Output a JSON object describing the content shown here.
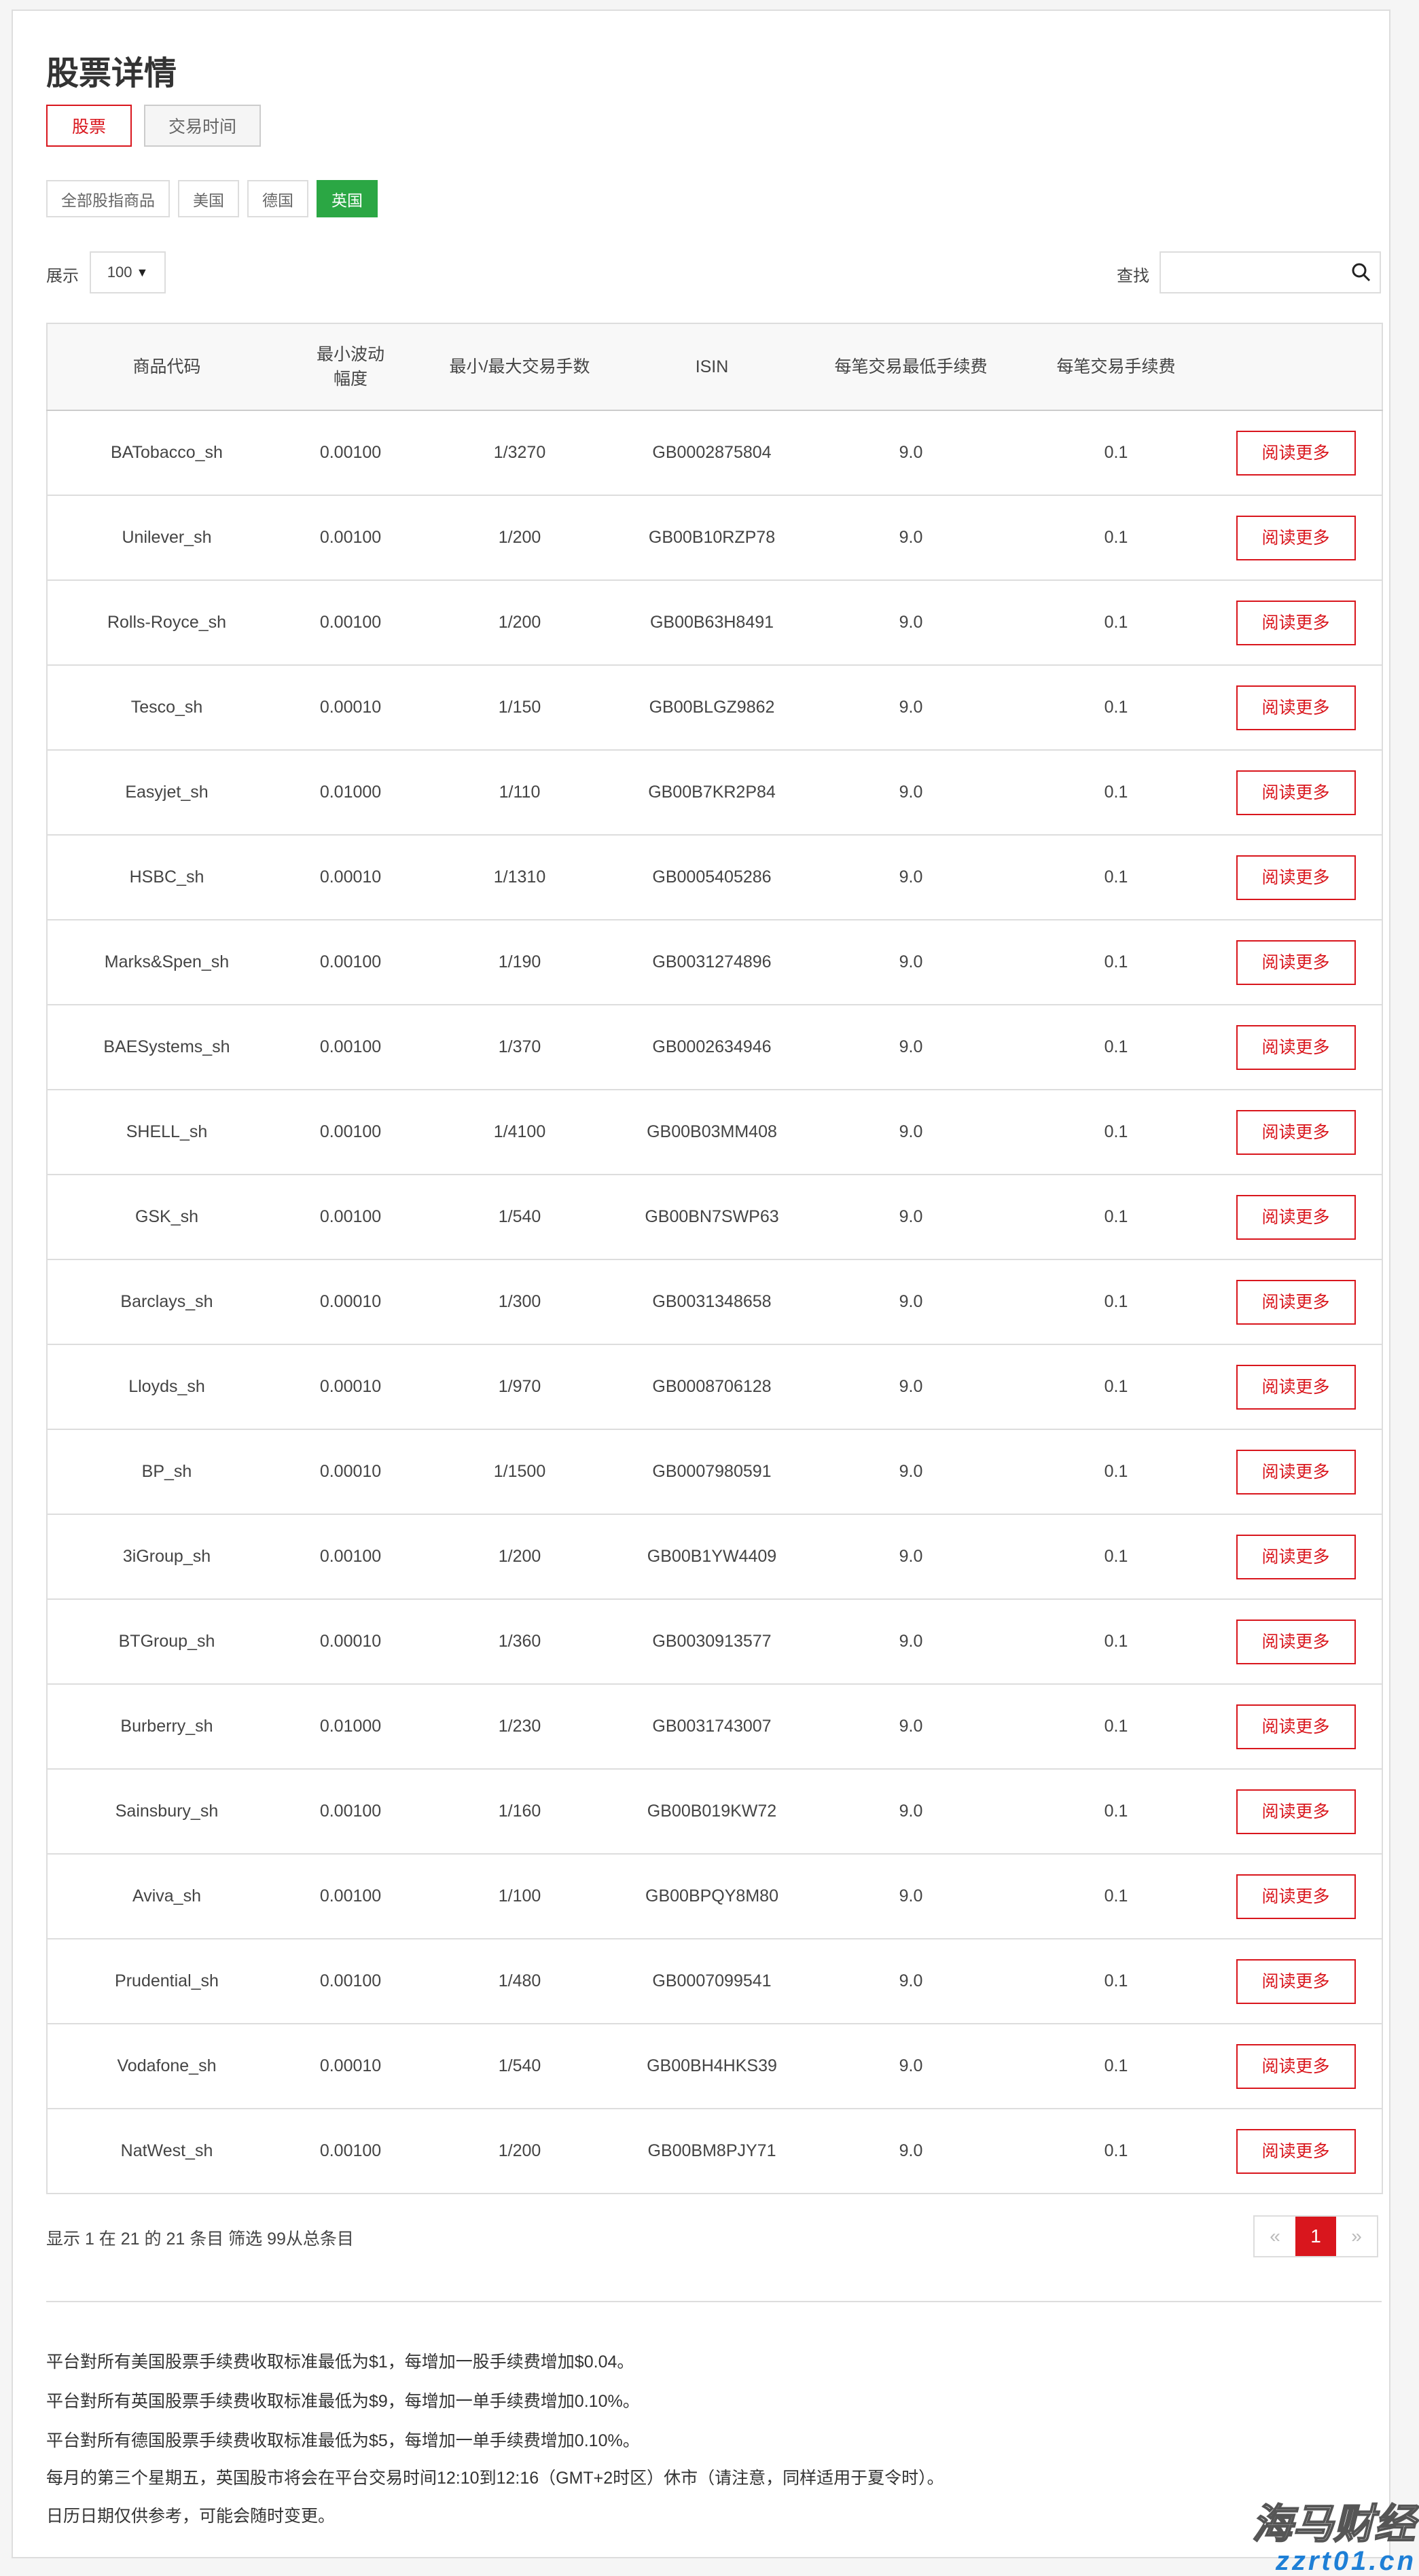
{
  "page": {
    "title": "股票详情"
  },
  "tabs": [
    {
      "label": "股票",
      "active": true
    },
    {
      "label": "交易时间",
      "active": false
    }
  ],
  "markets": [
    {
      "label": "全部股指商品"
    },
    {
      "label": "美国"
    },
    {
      "label": "德国"
    },
    {
      "label": "英国",
      "active": true
    }
  ],
  "controls": {
    "show_label": "展示",
    "page_size": "100",
    "search_label": "查找",
    "search_value": ""
  },
  "colors": {
    "accent": "#d9161d",
    "active_market": "#2ba744"
  },
  "table": {
    "headers": [
      "商品代码",
      "最小波动幅度",
      "最小/最大交易手数",
      "ISIN",
      "每笔交易最低手续费",
      "每笔交易手续费",
      ""
    ],
    "header_line1": "最小波动",
    "header_line2": "幅度",
    "button_label": "阅读更多",
    "rows": [
      [
        "BATobacco_sh",
        "0.00100",
        "1/3270",
        "GB0002875804",
        "9.0",
        "0.1"
      ],
      [
        "Unilever_sh",
        "0.00100",
        "1/200",
        "GB00B10RZP78",
        "9.0",
        "0.1"
      ],
      [
        "Rolls-Royce_sh",
        "0.00100",
        "1/200",
        "GB00B63H8491",
        "9.0",
        "0.1"
      ],
      [
        "Tesco_sh",
        "0.00010",
        "1/150",
        "GB00BLGZ9862",
        "9.0",
        "0.1"
      ],
      [
        "Easyjet_sh",
        "0.01000",
        "1/110",
        "GB00B7KR2P84",
        "9.0",
        "0.1"
      ],
      [
        "HSBC_sh",
        "0.00010",
        "1/1310",
        "GB0005405286",
        "9.0",
        "0.1"
      ],
      [
        "Marks&Spen_sh",
        "0.00100",
        "1/190",
        "GB0031274896",
        "9.0",
        "0.1"
      ],
      [
        "BAESystems_sh",
        "0.00100",
        "1/370",
        "GB0002634946",
        "9.0",
        "0.1"
      ],
      [
        "SHELL_sh",
        "0.00100",
        "1/4100",
        "GB00B03MM408",
        "9.0",
        "0.1"
      ],
      [
        "GSK_sh",
        "0.00100",
        "1/540",
        "GB00BN7SWP63",
        "9.0",
        "0.1"
      ],
      [
        "Barclays_sh",
        "0.00010",
        "1/300",
        "GB0031348658",
        "9.0",
        "0.1"
      ],
      [
        "Lloyds_sh",
        "0.00010",
        "1/970",
        "GB0008706128",
        "9.0",
        "0.1"
      ],
      [
        "BP_sh",
        "0.00010",
        "1/1500",
        "GB0007980591",
        "9.0",
        "0.1"
      ],
      [
        "3iGroup_sh",
        "0.00100",
        "1/200",
        "GB00B1YW4409",
        "9.0",
        "0.1"
      ],
      [
        "BTGroup_sh",
        "0.00010",
        "1/360",
        "GB0030913577",
        "9.0",
        "0.1"
      ],
      [
        "Burberry_sh",
        "0.01000",
        "1/230",
        "GB0031743007",
        "9.0",
        "0.1"
      ],
      [
        "Sainsbury_sh",
        "0.00100",
        "1/160",
        "GB00B019KW72",
        "9.0",
        "0.1"
      ],
      [
        "Aviva_sh",
        "0.00100",
        "1/100",
        "GB00BPQY8M80",
        "9.0",
        "0.1"
      ],
      [
        "Prudential_sh",
        "0.00100",
        "1/480",
        "GB0007099541",
        "9.0",
        "0.1"
      ],
      [
        "Vodafone_sh",
        "0.00010",
        "1/540",
        "GB00BH4HKS39",
        "9.0",
        "0.1"
      ],
      [
        "NatWest_sh",
        "0.00100",
        "1/200",
        "GB00BM8PJY71",
        "9.0",
        "0.1"
      ]
    ]
  },
  "footer": {
    "info": "显示 1 在 21 的 21 条目 筛选 99从总条目",
    "pager": {
      "prev": "«",
      "current": "1",
      "next": "»"
    }
  },
  "notes": [
    "平台對所有美国股票手续费收取标准最低为$1，每增加一股手续费增加$0.04。",
    "平台對所有英国股票手续费收取标准最低为$9，每增加一单手续费增加0.10%。",
    "平台對所有德国股票手续费收取标准最低为$5，每增加一单手续费增加0.10%。",
    "每月的第三个星期五，英国股市将会在平台交易时间12:10到12:16（GMT+2时区）休市（请注意，同样适用于夏令时）。",
    "日历日期仅供参考，可能会随时变更。"
  ],
  "watermark": {
    "line1": "海马财经",
    "line2": "zzrt01.cn"
  }
}
